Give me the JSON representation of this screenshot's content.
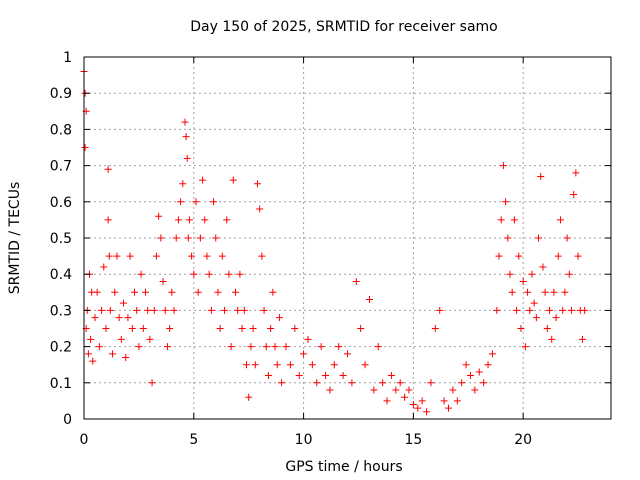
{
  "chart_data": {
    "type": "scatter",
    "title": "Day 150 of 2025, SRMTID for receiver samo",
    "xlabel": "GPS time / hours",
    "ylabel": "SRMTID / TECUs",
    "xlim": [
      0,
      24
    ],
    "ylim": [
      0,
      1
    ],
    "xticks": [
      0,
      5,
      10,
      15,
      20
    ],
    "xtick_labels": [
      "0",
      "5",
      "10",
      "15",
      "20"
    ],
    "yticks": [
      0,
      0.1,
      0.2,
      0.3,
      0.4,
      0.5,
      0.6,
      0.7,
      0.8,
      0.9,
      1
    ],
    "ytick_labels": [
      "0",
      "0.1",
      "0.2",
      "0.3",
      "0.4",
      "0.5",
      "0.6",
      "0.7",
      "0.8",
      "0.9",
      "1"
    ],
    "grid": true,
    "marker": "+",
    "color": "#ff0000",
    "series": [
      {
        "name": "SRMTID",
        "x": [
          0.0,
          0.05,
          0.05,
          0.1,
          0.1,
          0.15,
          0.2,
          0.25,
          0.3,
          0.35,
          0.4,
          0.5,
          0.6,
          0.7,
          0.8,
          0.9,
          1.0,
          1.1,
          1.1,
          1.15,
          1.2,
          1.3,
          1.4,
          1.5,
          1.6,
          1.7,
          1.8,
          1.9,
          2.0,
          2.1,
          2.2,
          2.3,
          2.4,
          2.5,
          2.6,
          2.7,
          2.8,
          2.9,
          3.0,
          3.1,
          3.2,
          3.3,
          3.4,
          3.5,
          3.6,
          3.7,
          3.8,
          3.9,
          4.0,
          4.1,
          4.2,
          4.3,
          4.4,
          4.5,
          4.6,
          4.65,
          4.7,
          4.75,
          4.8,
          4.9,
          5.0,
          5.1,
          5.2,
          5.3,
          5.4,
          5.5,
          5.6,
          5.7,
          5.8,
          5.9,
          6.0,
          6.1,
          6.2,
          6.3,
          6.4,
          6.5,
          6.6,
          6.7,
          6.8,
          6.9,
          7.0,
          7.1,
          7.2,
          7.3,
          7.4,
          7.5,
          7.6,
          7.7,
          7.8,
          7.9,
          8.0,
          8.1,
          8.2,
          8.3,
          8.4,
          8.5,
          8.6,
          8.7,
          8.8,
          8.9,
          9.0,
          9.2,
          9.4,
          9.6,
          9.8,
          10.0,
          10.2,
          10.4,
          10.6,
          10.8,
          11.0,
          11.2,
          11.4,
          11.6,
          11.8,
          12.0,
          12.2,
          12.4,
          12.6,
          12.8,
          13.0,
          13.2,
          13.4,
          13.6,
          13.8,
          14.0,
          14.2,
          14.4,
          14.6,
          14.8,
          15.0,
          15.2,
          15.4,
          15.6,
          15.8,
          16.0,
          16.2,
          16.4,
          16.6,
          16.8,
          17.0,
          17.2,
          17.4,
          17.6,
          17.8,
          18.0,
          18.2,
          18.4,
          18.6,
          18.8,
          18.9,
          19.0,
          19.1,
          19.2,
          19.3,
          19.4,
          19.5,
          19.6,
          19.7,
          19.8,
          19.9,
          20.0,
          20.1,
          20.2,
          20.3,
          20.4,
          20.5,
          20.6,
          20.7,
          20.8,
          20.9,
          21.0,
          21.1,
          21.2,
          21.3,
          21.4,
          21.5,
          21.6,
          21.7,
          21.8,
          21.9,
          22.0,
          22.1,
          22.2,
          22.3,
          22.4,
          22.5,
          22.6,
          22.7,
          22.8
        ],
        "y": [
          0.96,
          0.9,
          0.75,
          0.85,
          0.25,
          0.3,
          0.18,
          0.4,
          0.22,
          0.35,
          0.16,
          0.28,
          0.35,
          0.2,
          0.3,
          0.42,
          0.25,
          0.69,
          0.55,
          0.45,
          0.3,
          0.18,
          0.35,
          0.45,
          0.28,
          0.22,
          0.32,
          0.17,
          0.28,
          0.45,
          0.25,
          0.35,
          0.3,
          0.2,
          0.4,
          0.25,
          0.35,
          0.3,
          0.22,
          0.1,
          0.3,
          0.45,
          0.56,
          0.5,
          0.38,
          0.3,
          0.2,
          0.25,
          0.35,
          0.3,
          0.5,
          0.55,
          0.6,
          0.65,
          0.82,
          0.78,
          0.72,
          0.5,
          0.55,
          0.45,
          0.4,
          0.6,
          0.35,
          0.5,
          0.66,
          0.55,
          0.45,
          0.4,
          0.3,
          0.6,
          0.5,
          0.35,
          0.25,
          0.45,
          0.3,
          0.55,
          0.4,
          0.2,
          0.66,
          0.35,
          0.3,
          0.4,
          0.25,
          0.3,
          0.15,
          0.06,
          0.2,
          0.25,
          0.15,
          0.65,
          0.58,
          0.45,
          0.3,
          0.2,
          0.12,
          0.25,
          0.35,
          0.2,
          0.15,
          0.28,
          0.1,
          0.2,
          0.15,
          0.25,
          0.12,
          0.18,
          0.22,
          0.15,
          0.1,
          0.2,
          0.12,
          0.08,
          0.15,
          0.2,
          0.12,
          0.18,
          0.1,
          0.38,
          0.25,
          0.15,
          0.33,
          0.08,
          0.2,
          0.1,
          0.05,
          0.12,
          0.08,
          0.1,
          0.06,
          0.08,
          0.04,
          0.03,
          0.05,
          0.02,
          0.1,
          0.25,
          0.3,
          0.05,
          0.03,
          0.08,
          0.05,
          0.1,
          0.15,
          0.12,
          0.08,
          0.13,
          0.1,
          0.15,
          0.18,
          0.3,
          0.45,
          0.55,
          0.7,
          0.6,
          0.5,
          0.4,
          0.35,
          0.55,
          0.3,
          0.45,
          0.25,
          0.38,
          0.2,
          0.35,
          0.3,
          0.4,
          0.32,
          0.28,
          0.5,
          0.67,
          0.42,
          0.35,
          0.25,
          0.3,
          0.22,
          0.35,
          0.28,
          0.45,
          0.55,
          0.3,
          0.35,
          0.5,
          0.4,
          0.3,
          0.62,
          0.68,
          0.45,
          0.3,
          0.22,
          0.3
        ]
      }
    ]
  }
}
